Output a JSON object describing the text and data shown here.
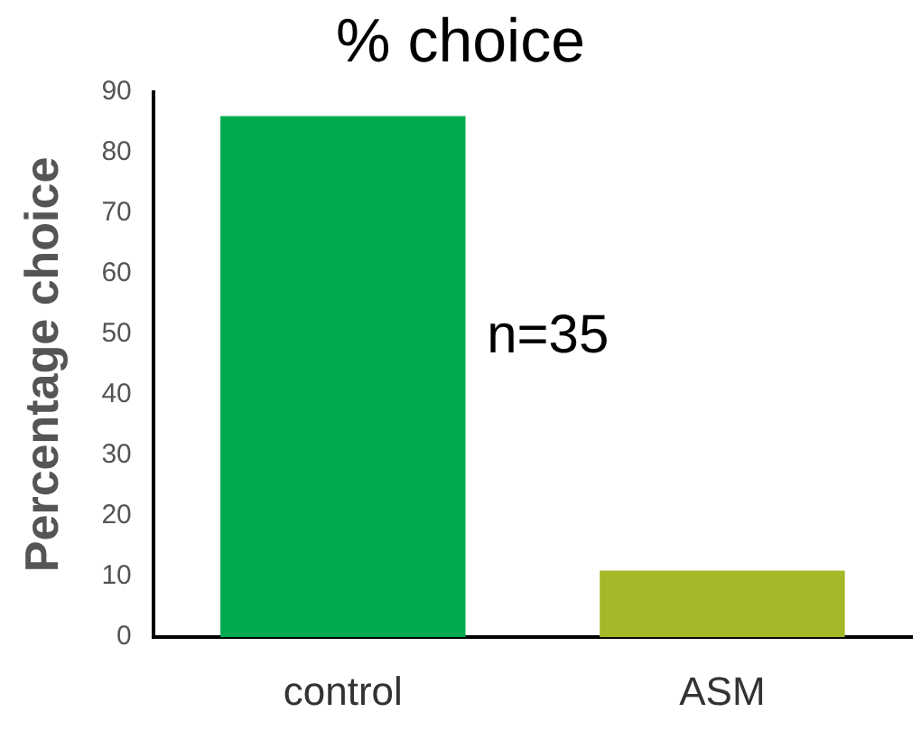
{
  "chart_data": {
    "type": "bar",
    "title": "% choice",
    "ylabel": "Percentage choice",
    "categories": [
      "control",
      "ASM"
    ],
    "values": [
      86,
      11
    ],
    "colors": [
      "#00ab4e",
      "#a4b828"
    ],
    "ylim": [
      0,
      90
    ],
    "yticks": [
      0,
      10,
      20,
      30,
      40,
      50,
      60,
      70,
      80,
      90
    ],
    "grid": false,
    "legend": false,
    "annotations": [
      "n=35"
    ]
  }
}
